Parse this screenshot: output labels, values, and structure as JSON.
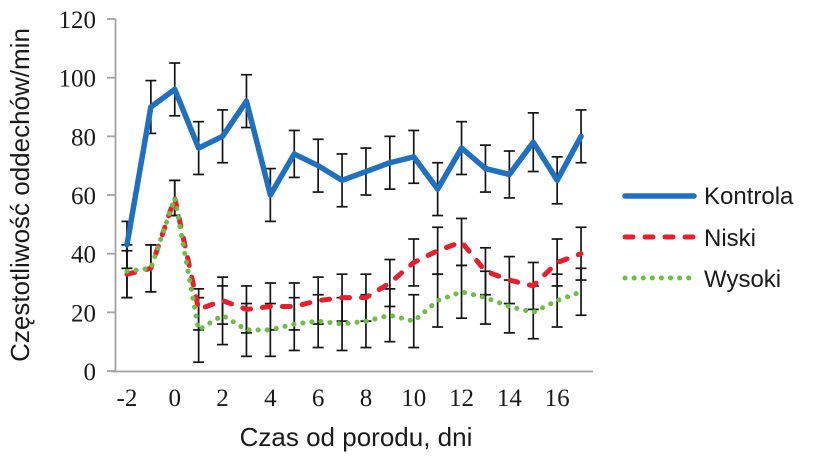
{
  "chart_data": {
    "type": "line",
    "title": "",
    "xlabel": "Czas od porodu, dni",
    "ylabel": "Częstotliwość oddechów/min",
    "x": [
      -2,
      -1,
      0,
      1,
      2,
      3,
      4,
      5,
      6,
      7,
      8,
      9,
      10,
      11,
      12,
      13,
      14,
      15,
      16,
      17
    ],
    "x_tick_labels": [
      -2,
      0,
      2,
      4,
      6,
      8,
      10,
      12,
      14,
      16
    ],
    "y_ticks": [
      0,
      20,
      40,
      60,
      80,
      100,
      120
    ],
    "ylim": [
      0,
      120
    ],
    "grid": false,
    "legend_position": "right",
    "axis_color": "#a3a3a3",
    "text_color": "#1a1a1a",
    "error_bar_color": "#141414",
    "series": [
      {
        "name": "Kontrola",
        "style": "solid",
        "color": "#1f70c1",
        "values": [
          43,
          90,
          96,
          76,
          80,
          92,
          60,
          74,
          70,
          65,
          68,
          71,
          73,
          62,
          76,
          69,
          67,
          78,
          65,
          80
        ],
        "errors": [
          8,
          9,
          9,
          9,
          9,
          9,
          9,
          8,
          9,
          9,
          8,
          9,
          9,
          9,
          9,
          8,
          8,
          10,
          8,
          9
        ]
      },
      {
        "name": "Niski",
        "style": "dashed",
        "color": "#e81e2c",
        "values": [
          33,
          35,
          59,
          21,
          24,
          21,
          22,
          22,
          24,
          25,
          25,
          30,
          37,
          41,
          44,
          34,
          31,
          29,
          37,
          40
        ],
        "errors": [
          8,
          8,
          6,
          7,
          8,
          8,
          8,
          8,
          8,
          8,
          8,
          8,
          8,
          8,
          8,
          8,
          8,
          8,
          8,
          9
        ]
      },
      {
        "name": "Wysoki",
        "style": "dotted",
        "color": "#6dbe45",
        "values": [
          34,
          35,
          59,
          14,
          19,
          14,
          14,
          16,
          17,
          16,
          17,
          19,
          17,
          24,
          27,
          25,
          22,
          20,
          24,
          27
        ],
        "errors": [
          9,
          8,
          6,
          11,
          10,
          9,
          9,
          9,
          9,
          9,
          9,
          9,
          9,
          9,
          9,
          9,
          9,
          9,
          9,
          8
        ]
      }
    ]
  }
}
